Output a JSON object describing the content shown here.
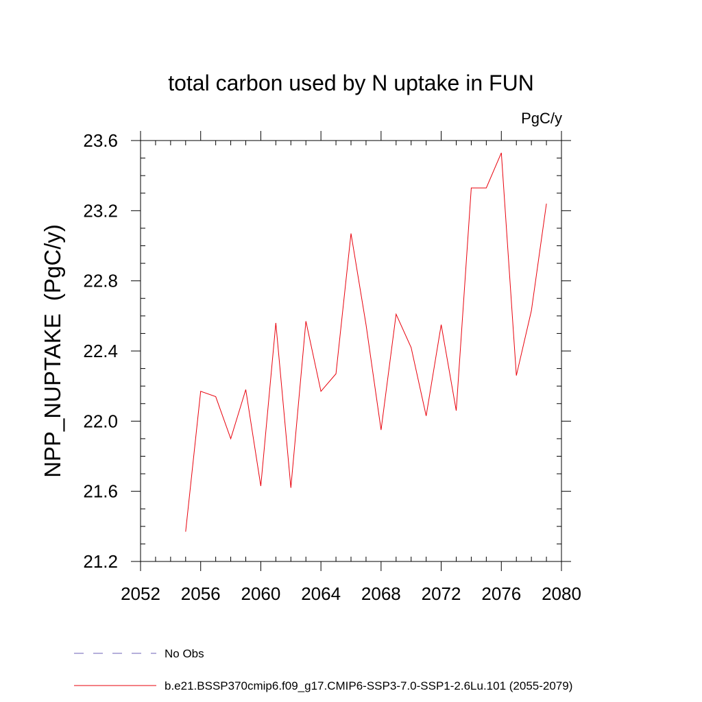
{
  "chart_data": {
    "type": "line",
    "title": "total carbon used by N uptake in FUN",
    "units_label": "PgC/y",
    "ylabel": "NPP_NUPTAKE  (PgC/y)",
    "xlabel": "",
    "xlim": [
      2052,
      2080
    ],
    "ylim": [
      21.2,
      23.6
    ],
    "x_ticks": [
      2052,
      2056,
      2060,
      2064,
      2068,
      2072,
      2076,
      2080
    ],
    "y_ticks": [
      21.2,
      21.6,
      22.0,
      22.4,
      22.8,
      23.2,
      23.6
    ],
    "x_tick_labels": [
      "2052",
      "2056",
      "2060",
      "2064",
      "2068",
      "2072",
      "2076",
      "2080"
    ],
    "y_tick_labels": [
      "21.2",
      "21.6",
      "22.0",
      "22.4",
      "22.8",
      "23.2",
      "23.6"
    ],
    "grid": false,
    "legend_placement": "bottom-left",
    "series": [
      {
        "name": "b.e21.BSSP370cmip6.f09_g17.CMIP6-SSP3-7.0-SSP1-2.6Lu.101 (2055-2079)",
        "color": "#e8000b",
        "style": "solid",
        "x": [
          2055,
          2056,
          2057,
          2058,
          2059,
          2060,
          2061,
          2062,
          2063,
          2064,
          2065,
          2066,
          2067,
          2068,
          2069,
          2070,
          2071,
          2072,
          2073,
          2074,
          2075,
          2076,
          2077,
          2078,
          2079
        ],
        "values": [
          21.37,
          22.17,
          22.14,
          21.9,
          22.18,
          21.63,
          22.56,
          21.62,
          22.57,
          22.17,
          22.27,
          23.07,
          22.55,
          21.95,
          22.61,
          22.42,
          22.03,
          22.55,
          22.06,
          23.33,
          23.33,
          23.53,
          22.26,
          22.63,
          23.24
        ]
      }
    ],
    "legend": [
      {
        "label": "No Obs",
        "color": "#6b5fb5",
        "style": "dashed"
      },
      {
        "label": "b.e21.BSSP370cmip6.f09_g17.CMIP6-SSP3-7.0-SSP1-2.6Lu.101 (2055-2079)",
        "color": "#e8000b",
        "style": "solid"
      }
    ]
  }
}
